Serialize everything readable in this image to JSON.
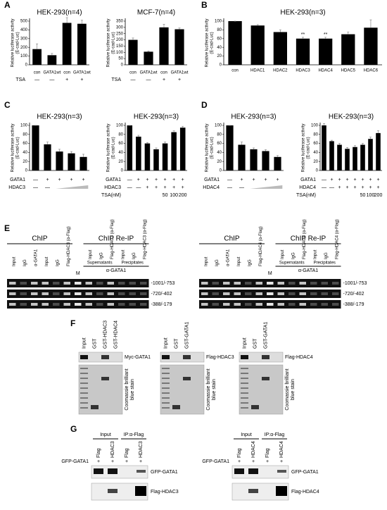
{
  "panel_letters": [
    "A",
    "B",
    "C",
    "D",
    "E",
    "F",
    "G"
  ],
  "chart_data": [
    {
      "type": "bar",
      "title": "HEK-293(n=4)",
      "ylabel": [
        "Relative luciferase activity",
        "(E-cad-Luc)"
      ],
      "categories": [
        "con",
        "GATA1wt",
        "con",
        "GATA1wt"
      ],
      "values": [
        180,
        110,
        480,
        470
      ],
      "errors": [
        60,
        20,
        60,
        40
      ],
      "ylim": [
        0,
        500
      ],
      "yticks": [
        0,
        100,
        200,
        300,
        400,
        500
      ],
      "color": "#000000",
      "conditions": [
        {
          "name": "TSA",
          "values": [
            "—",
            "—",
            "+",
            "+"
          ]
        }
      ]
    },
    {
      "type": "bar",
      "title": "MCF-7(n=4)",
      "ylabel": [
        "Relative luciferase activity",
        "(E-cad-Luc)"
      ],
      "categories": [
        "con",
        "GATA1wt",
        "con",
        "GATA1wt"
      ],
      "values": [
        200,
        105,
        300,
        285
      ],
      "errors": [
        15,
        5,
        25,
        10
      ],
      "ylim": [
        0,
        350
      ],
      "yticks": [
        0,
        50,
        100,
        150,
        200,
        250,
        300,
        350
      ],
      "color": "#000000",
      "conditions": [
        {
          "name": "TSA",
          "values": [
            "—",
            "—",
            "+",
            "+"
          ]
        }
      ]
    },
    {
      "type": "bar",
      "title": "HEK-293(n=3)",
      "ylabel": [
        "Relative luciferase activity",
        "(E-cad-Luc)"
      ],
      "categories": [
        "con",
        "HDAC1",
        "HDAC2",
        "HDAC3",
        "HDAC4",
        "HDAC5",
        "HDAC6"
      ],
      "values": [
        100,
        90,
        75,
        60,
        60,
        70,
        85
      ],
      "errors": [
        0,
        2,
        5,
        3,
        3,
        5,
        18
      ],
      "annotations": [
        null,
        null,
        null,
        "**",
        "**",
        null,
        null
      ],
      "ylim": [
        0,
        100
      ],
      "yticks": [
        0,
        20,
        40,
        60,
        80,
        100
      ],
      "color": "#000000",
      "conditions": []
    },
    {
      "type": "bar",
      "title": "HEK-293(n=3)",
      "ylabel": [
        "Relative luciferase activity",
        "(E-cad-Luc)"
      ],
      "values": [
        100,
        58,
        42,
        38,
        30
      ],
      "errors": [
        0,
        5,
        5,
        4,
        6
      ],
      "ylim": [
        0,
        100
      ],
      "yticks": [
        0,
        20,
        40,
        60,
        80,
        100
      ],
      "color": "#000000",
      "conditions": [
        {
          "name": "GATA1",
          "values": [
            "—",
            "+",
            "+",
            "+",
            "+"
          ]
        },
        {
          "name": "HDAC3",
          "values": [
            "—",
            "—",
            null,
            null,
            null
          ],
          "wedge": true
        }
      ]
    },
    {
      "type": "bar",
      "title": "HEK-293(n=3)",
      "ylabel": [
        "Relative luciferase activity",
        "(E-cad-Luc)"
      ],
      "values": [
        100,
        75,
        60,
        47,
        60,
        85,
        95
      ],
      "errors": [
        0,
        3,
        2,
        3,
        3,
        3,
        3
      ],
      "ylim": [
        0,
        100
      ],
      "yticks": [
        0,
        20,
        40,
        60,
        80,
        100
      ],
      "color": "#000000",
      "conditions": [
        {
          "name": "GATA1",
          "values": [
            "—",
            "+",
            "+",
            "+",
            "+",
            "+",
            "+"
          ]
        },
        {
          "name": "HDAC3",
          "values": [
            "—",
            "—",
            "+",
            "+",
            "+",
            "+",
            "+"
          ]
        },
        {
          "name": "TSA(nM)",
          "values": [
            null,
            null,
            null,
            null,
            50,
            100,
            200
          ]
        }
      ]
    },
    {
      "type": "bar",
      "title": "HEK-293(n=3)",
      "ylabel": [
        "Relative luciferase activity",
        "(E-cad-Luc)"
      ],
      "values": [
        100,
        57,
        47,
        43,
        30
      ],
      "errors": [
        0,
        6,
        3,
        3,
        3
      ],
      "ylim": [
        0,
        100
      ],
      "yticks": [
        0,
        20,
        40,
        60,
        80,
        100
      ],
      "color": "#000000",
      "conditions": [
        {
          "name": "GATA1",
          "values": [
            "—",
            "+",
            "+",
            "+",
            "+"
          ]
        },
        {
          "name": "HDAC4",
          "values": [
            "—",
            "—",
            null,
            null,
            null
          ],
          "wedge": true
        }
      ]
    },
    {
      "type": "bar",
      "title": "HEK-293(n=3)",
      "ylabel": [
        "Relative luciferase activity",
        "(E-cad-Luc)"
      ],
      "values": [
        100,
        65,
        57,
        48,
        52,
        57,
        70,
        83
      ],
      "errors": [
        4,
        2,
        3,
        3,
        3,
        3,
        4,
        5
      ],
      "ylim": [
        0,
        100
      ],
      "yticks": [
        0,
        20,
        40,
        60,
        80,
        100
      ],
      "color": "#000000",
      "conditions": [
        {
          "name": "GATA1",
          "values": [
            "—",
            "+",
            "+",
            "+",
            "+",
            "+",
            "+",
            "+"
          ]
        },
        {
          "name": "HDAC4",
          "values": [
            "—",
            "—",
            "+",
            "+",
            "+",
            "+",
            "+",
            "+"
          ]
        },
        {
          "name": "TSA(nM)",
          "values": [
            null,
            null,
            null,
            null,
            null,
            50,
            100,
            200
          ]
        }
      ]
    }
  ],
  "chip": [
    {
      "headers": [
        "ChIP",
        "ChIP Re-IP"
      ],
      "lanes": [
        "Input",
        "IgG",
        "α-GATA1",
        "Input",
        "IgG",
        "Flag-HDAC3 (α-Flag)",
        "M",
        "Input",
        "IgG",
        "Flag-HDAC3 (α-Flag)",
        "Input",
        "IgG",
        "Flag-HDAC3 (α-Flag)"
      ],
      "groups": [
        "Supernatants",
        "Precipitates"
      ],
      "antibody": "α-GATA1",
      "bands": [
        "-1001/-753",
        "-720/-402",
        "-388/-179"
      ]
    },
    {
      "headers": [
        "ChIP",
        "ChIP Re-IP"
      ],
      "lanes": [
        "Input",
        "IgG",
        "α-GATA1",
        "Input",
        "IgG",
        "Flag-HDAC4 (α-Flag)",
        "M",
        "Input",
        "IgG",
        "Flag-HDAC4 (α-Flag)",
        "Input",
        "IgG",
        "Flag-HDAC4 (α-Flag)"
      ],
      "groups": [
        "Supernatants",
        "Precipitates"
      ],
      "antibody": "α-GATA1",
      "bands": [
        "-1001/-753",
        "-720/-402",
        "-388/-179"
      ]
    }
  ],
  "pulldown": [
    {
      "lanes": [
        "Input",
        "GST",
        "GST-HDAC3",
        "GST-HDAC4"
      ],
      "blot": "Myc-GATA1",
      "stain": [
        "Coomassie brilliant",
        "blue stain"
      ]
    },
    {
      "lanes": [
        "Input",
        "GST",
        "GST-GATA1"
      ],
      "blot": "Flag-HDAC3",
      "stain": [
        "Coomassie brilliant",
        "blue stain"
      ]
    },
    {
      "lanes": [
        "Input",
        "GST",
        "GST-GATA1"
      ],
      "blot": "Flag-HDAC4",
      "stain": [
        "Coomassie brilliant",
        "blue stain"
      ]
    }
  ],
  "coip": [
    {
      "headers": [
        "Input",
        "IP:α-Flag"
      ],
      "lanes": [
        "Flag",
        "HDAC3",
        "Flag",
        "HDAC3"
      ],
      "row": {
        "name": "GFP-GATA1",
        "values": [
          "+",
          "+",
          "+",
          "+"
        ]
      },
      "blots": [
        "GFP-GATA1",
        "Flag-HDAC3"
      ]
    },
    {
      "headers": [
        "Input",
        "IP:α-Flag"
      ],
      "lanes": [
        "Flag",
        "HDAC4",
        "Flag",
        "HDAC4"
      ],
      "row": {
        "name": "GFP-GATA1",
        "values": [
          "+",
          "+",
          "+",
          "+"
        ]
      },
      "blots": [
        "GFP-GATA1",
        "Flag-HDAC4"
      ]
    }
  ]
}
